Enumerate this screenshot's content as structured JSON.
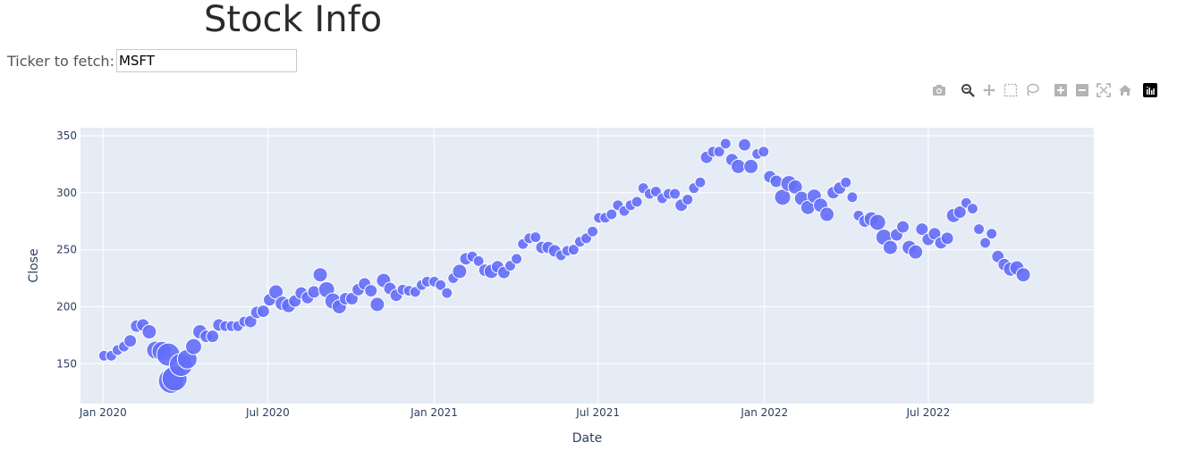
{
  "header": {
    "title": "Stock Info"
  },
  "ticker": {
    "label": "Ticker to fetch:",
    "value": "MSFT"
  },
  "modebar": {
    "icons": [
      "camera-icon",
      "zoom-icon",
      "pan-icon",
      "box-select-icon",
      "lasso-select-icon",
      "zoom-in-icon",
      "zoom-out-icon",
      "autoscale-icon",
      "reset-axes-icon",
      "plotly-logo-icon"
    ]
  },
  "chart_data": {
    "type": "scatter",
    "xlabel": "Date",
    "ylabel": "Close",
    "x_ticks": [
      "Jan 2020",
      "Jul 2020",
      "Jan 2021",
      "Jul 2021",
      "Jan 2022",
      "Jul 2022"
    ],
    "y_ticks": [
      150,
      200,
      250,
      300,
      350
    ],
    "xlim": [
      "2019-12-07",
      "2022-12-31"
    ],
    "ylim": [
      115,
      357
    ],
    "grid": true,
    "marker_color": "#636efa",
    "size_encoding": "marker size varies (larger during volatile periods)",
    "points": [
      [
        "2020-01-02",
        157,
        6
      ],
      [
        "2020-01-10",
        157,
        6
      ],
      [
        "2020-01-17",
        162,
        6
      ],
      [
        "2020-01-24",
        165,
        6
      ],
      [
        "2020-01-31",
        170,
        7
      ],
      [
        "2020-02-07",
        183,
        7
      ],
      [
        "2020-02-14",
        184,
        7
      ],
      [
        "2020-02-21",
        178,
        8
      ],
      [
        "2020-02-28",
        162,
        10
      ],
      [
        "2020-03-06",
        161,
        11
      ],
      [
        "2020-03-13",
        158,
        13
      ],
      [
        "2020-03-16",
        135,
        14
      ],
      [
        "2020-03-20",
        137,
        14
      ],
      [
        "2020-03-27",
        149,
        13
      ],
      [
        "2020-04-03",
        154,
        11
      ],
      [
        "2020-04-10",
        165,
        9
      ],
      [
        "2020-04-17",
        178,
        8
      ],
      [
        "2020-04-24",
        174,
        7
      ],
      [
        "2020-05-01",
        174,
        7
      ],
      [
        "2020-05-08",
        184,
        7
      ],
      [
        "2020-05-15",
        183,
        6
      ],
      [
        "2020-05-22",
        183,
        6
      ],
      [
        "2020-05-29",
        183,
        6
      ],
      [
        "2020-06-05",
        187,
        6
      ],
      [
        "2020-06-12",
        187,
        7
      ],
      [
        "2020-06-19",
        195,
        7
      ],
      [
        "2020-06-26",
        196,
        7
      ],
      [
        "2020-07-03",
        206,
        7
      ],
      [
        "2020-07-10",
        213,
        8
      ],
      [
        "2020-07-17",
        203,
        8
      ],
      [
        "2020-07-24",
        201,
        8
      ],
      [
        "2020-07-31",
        205,
        7
      ],
      [
        "2020-08-07",
        212,
        7
      ],
      [
        "2020-08-14",
        208,
        7
      ],
      [
        "2020-08-21",
        213,
        7
      ],
      [
        "2020-08-28",
        228,
        8
      ],
      [
        "2020-09-04",
        215,
        9
      ],
      [
        "2020-09-11",
        205,
        9
      ],
      [
        "2020-09-18",
        200,
        8
      ],
      [
        "2020-09-25",
        207,
        7
      ],
      [
        "2020-10-02",
        207,
        7
      ],
      [
        "2020-10-09",
        215,
        7
      ],
      [
        "2020-10-16",
        220,
        7
      ],
      [
        "2020-10-23",
        214,
        7
      ],
      [
        "2020-10-30",
        202,
        8
      ],
      [
        "2020-11-06",
        223,
        8
      ],
      [
        "2020-11-13",
        216,
        7
      ],
      [
        "2020-11-20",
        210,
        7
      ],
      [
        "2020-11-27",
        215,
        6
      ],
      [
        "2020-12-04",
        214,
        6
      ],
      [
        "2020-12-11",
        213,
        6
      ],
      [
        "2020-12-18",
        219,
        6
      ],
      [
        "2020-12-24",
        222,
        6
      ],
      [
        "2021-01-01",
        222,
        6
      ],
      [
        "2021-01-08",
        219,
        6
      ],
      [
        "2021-01-15",
        212,
        6
      ],
      [
        "2021-01-22",
        225,
        6
      ],
      [
        "2021-01-29",
        231,
        8
      ],
      [
        "2021-02-05",
        242,
        7
      ],
      [
        "2021-02-12",
        244,
        6
      ],
      [
        "2021-02-19",
        240,
        6
      ],
      [
        "2021-02-26",
        232,
        7
      ],
      [
        "2021-03-05",
        231,
        8
      ],
      [
        "2021-03-12",
        235,
        7
      ],
      [
        "2021-03-19",
        230,
        7
      ],
      [
        "2021-03-26",
        236,
        6
      ],
      [
        "2021-04-02",
        242,
        6
      ],
      [
        "2021-04-09",
        255,
        6
      ],
      [
        "2021-04-16",
        260,
        6
      ],
      [
        "2021-04-23",
        261,
        6
      ],
      [
        "2021-04-30",
        252,
        7
      ],
      [
        "2021-05-07",
        252,
        7
      ],
      [
        "2021-05-14",
        249,
        7
      ],
      [
        "2021-05-21",
        245,
        6
      ],
      [
        "2021-05-28",
        249,
        6
      ],
      [
        "2021-06-04",
        250,
        6
      ],
      [
        "2021-06-11",
        257,
        6
      ],
      [
        "2021-06-18",
        260,
        6
      ],
      [
        "2021-06-25",
        266,
        6
      ],
      [
        "2021-07-02",
        278,
        6
      ],
      [
        "2021-07-09",
        278,
        6
      ],
      [
        "2021-07-16",
        281,
        6
      ],
      [
        "2021-07-23",
        289,
        6
      ],
      [
        "2021-07-30",
        284,
        6
      ],
      [
        "2021-08-06",
        289,
        6
      ],
      [
        "2021-08-13",
        292,
        6
      ],
      [
        "2021-08-20",
        304,
        6
      ],
      [
        "2021-08-27",
        299,
        6
      ],
      [
        "2021-09-03",
        301,
        6
      ],
      [
        "2021-09-10",
        295,
        6
      ],
      [
        "2021-09-17",
        299,
        6
      ],
      [
        "2021-09-24",
        299,
        6
      ],
      [
        "2021-10-01",
        289,
        7
      ],
      [
        "2021-10-08",
        294,
        6
      ],
      [
        "2021-10-15",
        304,
        6
      ],
      [
        "2021-10-22",
        309,
        6
      ],
      [
        "2021-10-29",
        331,
        7
      ],
      [
        "2021-11-05",
        336,
        6
      ],
      [
        "2021-11-12",
        336,
        6
      ],
      [
        "2021-11-19",
        343,
        6
      ],
      [
        "2021-11-26",
        329,
        7
      ],
      [
        "2021-12-03",
        323,
        8
      ],
      [
        "2021-12-10",
        342,
        7
      ],
      [
        "2021-12-17",
        323,
        8
      ],
      [
        "2021-12-24",
        334,
        6
      ],
      [
        "2021-12-31",
        336,
        6
      ],
      [
        "2022-01-07",
        314,
        7
      ],
      [
        "2022-01-14",
        310,
        7
      ],
      [
        "2022-01-21",
        296,
        9
      ],
      [
        "2022-01-28",
        308,
        9
      ],
      [
        "2022-02-04",
        305,
        8
      ],
      [
        "2022-02-11",
        295,
        8
      ],
      [
        "2022-02-18",
        287,
        8
      ],
      [
        "2022-02-25",
        297,
        8
      ],
      [
        "2022-03-04",
        289,
        8
      ],
      [
        "2022-03-11",
        281,
        8
      ],
      [
        "2022-03-18",
        300,
        7
      ],
      [
        "2022-03-25",
        304,
        7
      ],
      [
        "2022-04-01",
        309,
        6
      ],
      [
        "2022-04-08",
        296,
        6
      ],
      [
        "2022-04-15",
        280,
        6
      ],
      [
        "2022-04-22",
        275,
        7
      ],
      [
        "2022-04-29",
        277,
        8
      ],
      [
        "2022-05-06",
        274,
        9
      ],
      [
        "2022-05-13",
        261,
        9
      ],
      [
        "2022-05-20",
        252,
        8
      ],
      [
        "2022-05-27",
        263,
        7
      ],
      [
        "2022-06-03",
        270,
        7
      ],
      [
        "2022-06-10",
        252,
        8
      ],
      [
        "2022-06-17",
        248,
        8
      ],
      [
        "2022-06-24",
        268,
        7
      ],
      [
        "2022-07-01",
        259,
        7
      ],
      [
        "2022-07-08",
        264,
        7
      ],
      [
        "2022-07-15",
        256,
        7
      ],
      [
        "2022-07-22",
        260,
        7
      ],
      [
        "2022-07-29",
        280,
        8
      ],
      [
        "2022-08-05",
        283,
        7
      ],
      [
        "2022-08-12",
        291,
        6
      ],
      [
        "2022-08-19",
        286,
        6
      ],
      [
        "2022-08-26",
        268,
        6
      ],
      [
        "2022-09-02",
        256,
        6
      ],
      [
        "2022-09-09",
        264,
        6
      ],
      [
        "2022-09-16",
        244,
        7
      ],
      [
        "2022-09-23",
        237,
        7
      ],
      [
        "2022-09-30",
        233,
        8
      ],
      [
        "2022-10-07",
        234,
        8
      ],
      [
        "2022-10-14",
        228,
        8
      ]
    ]
  }
}
